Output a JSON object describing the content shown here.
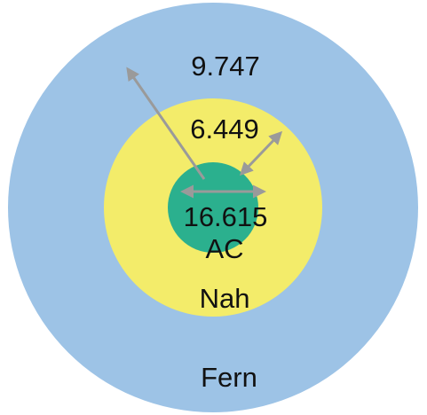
{
  "diagram": {
    "zones": [
      {
        "id": "outer",
        "name": "Fern",
        "value": "9.747",
        "color": "#9dc3e6"
      },
      {
        "id": "middle",
        "name": "Nah",
        "value": "6.449",
        "color": "#f3ec6a"
      },
      {
        "id": "inner",
        "name": "AC",
        "value": "16.615",
        "color": "#2bb08e"
      }
    ],
    "arrow_color": "#9a9a9a"
  }
}
